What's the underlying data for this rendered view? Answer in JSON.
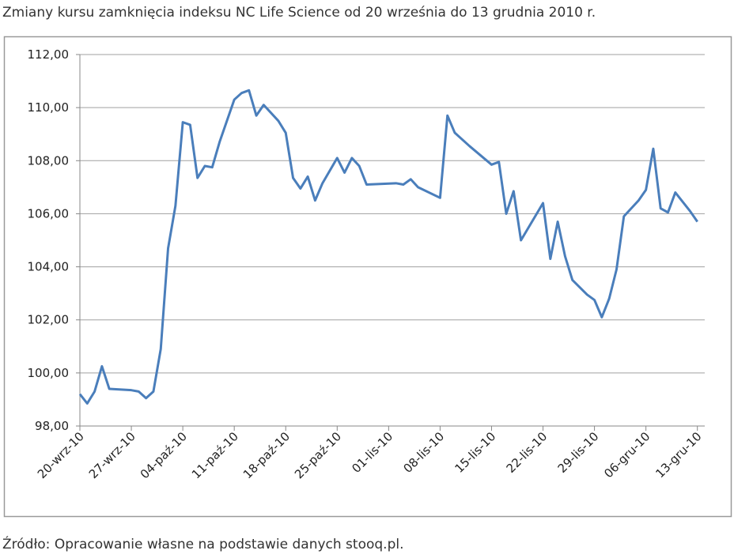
{
  "chart_data": {
    "type": "line",
    "title": "Zmiany kursu zamknięcia indeksu NC Life Science od 20 września do 13 grudnia 2010 r.",
    "source": "Źródło: Opracowanie własne na podstawie danych stooq.pl.",
    "x": [
      "2010-09-20",
      "2010-09-21",
      "2010-09-22",
      "2010-09-23",
      "2010-09-24",
      "2010-09-27",
      "2010-09-28",
      "2010-09-29",
      "2010-09-30",
      "2010-10-01",
      "2010-10-02",
      "2010-10-03",
      "2010-10-04",
      "2010-10-05",
      "2010-10-06",
      "2010-10-07",
      "2010-10-08",
      "2010-10-09",
      "2010-10-11",
      "2010-10-12",
      "2010-10-13",
      "2010-10-14",
      "2010-10-15",
      "2010-10-17",
      "2010-10-18",
      "2010-10-19",
      "2010-10-20",
      "2010-10-21",
      "2010-10-22",
      "2010-10-23",
      "2010-10-25",
      "2010-10-26",
      "2010-10-27",
      "2010-10-28",
      "2010-10-29",
      "2010-11-02",
      "2010-11-03",
      "2010-11-04",
      "2010-11-05",
      "2010-11-08",
      "2010-11-09",
      "2010-11-10",
      "2010-11-12",
      "2010-11-15",
      "2010-11-16",
      "2010-11-17",
      "2010-11-18",
      "2010-11-19",
      "2010-11-22",
      "2010-11-23",
      "2010-11-24",
      "2010-11-25",
      "2010-11-26",
      "2010-11-28",
      "2010-11-29",
      "2010-11-30",
      "2010-12-01",
      "2010-12-02",
      "2010-12-03",
      "2010-12-05",
      "2010-12-06",
      "2010-12-07",
      "2010-12-08",
      "2010-12-09",
      "2010-12-10",
      "2010-12-12",
      "2010-12-13"
    ],
    "series": [
      {
        "color": "#4a7ebb",
        "values": [
          99.2,
          98.85,
          99.3,
          100.25,
          99.4,
          99.35,
          99.3,
          99.05,
          99.3,
          100.9,
          104.7,
          106.3,
          109.45,
          109.35,
          107.35,
          107.8,
          107.75,
          108.7,
          110.3,
          110.55,
          110.65,
          109.7,
          110.1,
          109.5,
          109.05,
          107.35,
          106.95,
          107.4,
          106.5,
          107.15,
          108.1,
          107.55,
          108.1,
          107.8,
          107.1,
          107.15,
          107.1,
          107.3,
          107.0,
          106.6,
          109.7,
          109.05,
          108.55,
          107.85,
          107.95,
          106.0,
          106.85,
          105.0,
          106.4,
          104.3,
          105.7,
          104.4,
          103.5,
          102.95,
          102.75,
          102.1,
          102.8,
          103.9,
          105.9,
          106.5,
          106.9,
          108.45,
          106.2,
          106.05,
          106.8,
          106.1,
          105.7
        ]
      }
    ],
    "xlim": [
      "2010-09-20",
      "2010-12-14"
    ],
    "xticks": [
      {
        "value": "2010-09-20",
        "label": "20-wrz-10"
      },
      {
        "value": "2010-09-27",
        "label": "27-wrz-10"
      },
      {
        "value": "2010-10-04",
        "label": "04-paź-10"
      },
      {
        "value": "2010-10-11",
        "label": "11-paź-10"
      },
      {
        "value": "2010-10-18",
        "label": "18-paź-10"
      },
      {
        "value": "2010-10-25",
        "label": "25-paź-10"
      },
      {
        "value": "2010-11-01",
        "label": "01-lis-10"
      },
      {
        "value": "2010-11-08",
        "label": "08-lis-10"
      },
      {
        "value": "2010-11-15",
        "label": "15-lis-10"
      },
      {
        "value": "2010-11-22",
        "label": "22-lis-10"
      },
      {
        "value": "2010-11-29",
        "label": "29-lis-10"
      },
      {
        "value": "2010-12-06",
        "label": "06-gru-10"
      },
      {
        "value": "2010-12-13",
        "label": "13-gru-10"
      }
    ],
    "ylim": [
      98,
      112
    ],
    "yticks": [
      {
        "value": 98,
        "label": "98,00"
      },
      {
        "value": 100,
        "label": "100,00"
      },
      {
        "value": 102,
        "label": "102,00"
      },
      {
        "value": 104,
        "label": "104,00"
      },
      {
        "value": 106,
        "label": "106,00"
      },
      {
        "value": 108,
        "label": "108,00"
      },
      {
        "value": 110,
        "label": "110,00"
      },
      {
        "value": 112,
        "label": "112,00"
      }
    ],
    "grid": true
  }
}
